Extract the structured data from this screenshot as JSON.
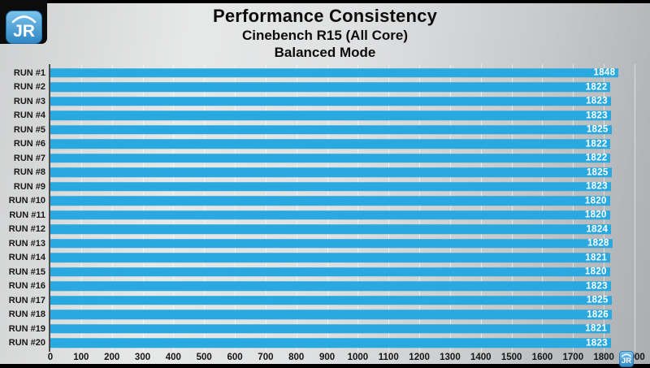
{
  "branding": {
    "logo_text": "JR",
    "watermark_text": "JR"
  },
  "header": {
    "title": "Performance Consistency",
    "subtitle1": "Cinebench R15 (All Core)",
    "subtitle2": "Balanced Mode"
  },
  "colors": {
    "bar": "#29a9e0",
    "value_text": "#ffffff",
    "label_text": "#181818",
    "logo_blue_top": "#7cc4ec",
    "logo_blue_bottom": "#2e86c4",
    "background_dark": "#000000"
  },
  "chart_data": {
    "type": "bar",
    "orientation": "horizontal",
    "title": "Performance Consistency",
    "subtitle": "Cinebench R15 (All Core) — Balanced Mode",
    "categories": [
      "RUN #1",
      "RUN #2",
      "RUN #3",
      "RUN #4",
      "RUN #5",
      "RUN #6",
      "RUN #7",
      "RUN #8",
      "RUN #9",
      "RUN #10",
      "RUN #11",
      "RUN #12",
      "RUN #13",
      "RUN #14",
      "RUN #15",
      "RUN #16",
      "RUN #17",
      "RUN #18",
      "RUN #19",
      "RUN #20"
    ],
    "values": [
      1848,
      1822,
      1823,
      1823,
      1825,
      1822,
      1822,
      1825,
      1823,
      1820,
      1820,
      1824,
      1828,
      1821,
      1820,
      1823,
      1825,
      1826,
      1821,
      1823
    ],
    "xlim": [
      0,
      1900
    ],
    "x_ticks": [
      0,
      100,
      200,
      300,
      400,
      500,
      600,
      700,
      800,
      900,
      1000,
      1100,
      1200,
      1300,
      1400,
      1500,
      1600,
      1700,
      1800,
      1900
    ],
    "grid": true,
    "legend": "none",
    "value_labels": "inside-end"
  }
}
